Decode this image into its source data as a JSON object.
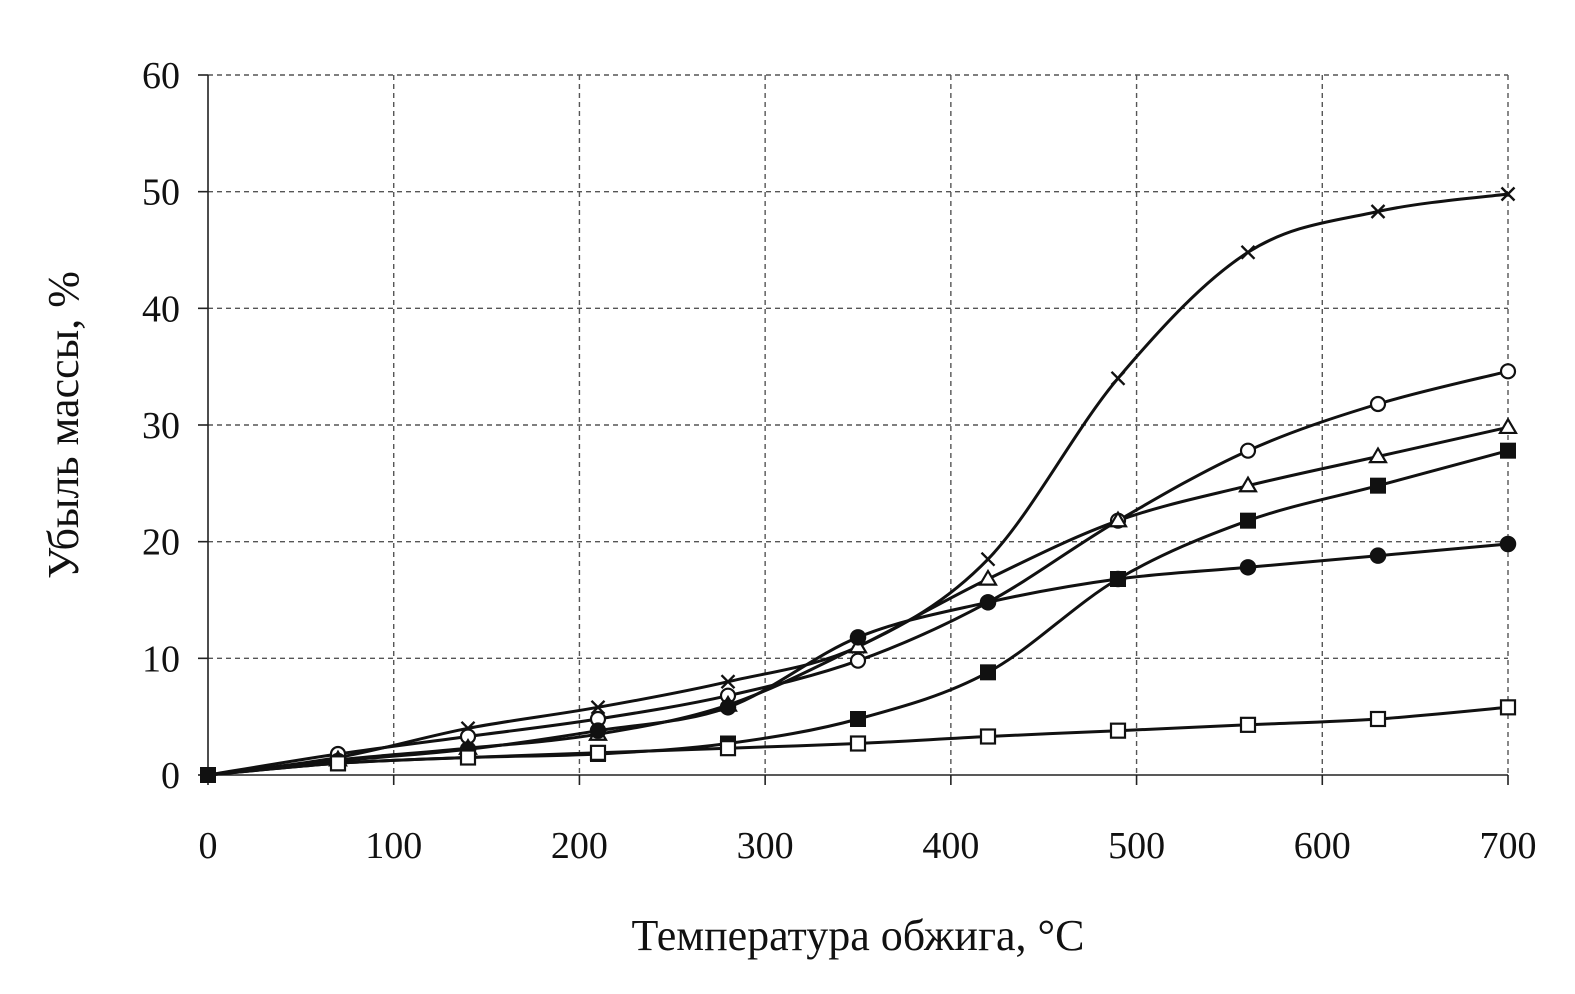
{
  "chart_data": {
    "type": "line",
    "xlabel": "Температура обжига, °C",
    "ylabel": "Убыль массы, %",
    "xlim": [
      0,
      700
    ],
    "ylim": [
      0,
      60
    ],
    "xticks": [
      0,
      100,
      200,
      300,
      400,
      500,
      600,
      700
    ],
    "yticks": [
      0,
      10,
      20,
      30,
      40,
      50,
      60
    ],
    "grid": true,
    "line_color": "#111111",
    "series": [
      {
        "marker": "cross",
        "x": [
          0,
          70,
          140,
          210,
          280,
          350,
          420,
          490,
          560,
          630,
          700
        ],
        "y": [
          0,
          1.5,
          4,
          5.8,
          8,
          11,
          18.5,
          34,
          44.8,
          48.3,
          49.8
        ]
      },
      {
        "marker": "open-circle",
        "x": [
          0,
          70,
          140,
          210,
          280,
          350,
          420,
          490,
          560,
          630,
          700
        ],
        "y": [
          0,
          1.8,
          3.3,
          4.8,
          6.8,
          9.8,
          14.8,
          21.8,
          27.8,
          31.8,
          34.6
        ]
      },
      {
        "marker": "open-triangle",
        "x": [
          0,
          70,
          140,
          210,
          280,
          350,
          420,
          490,
          560,
          630,
          700
        ],
        "y": [
          0,
          1.3,
          2.3,
          3.5,
          6,
          11,
          16.8,
          21.8,
          24.8,
          27.3,
          29.8
        ]
      },
      {
        "marker": "filled-square",
        "x": [
          0,
          70,
          140,
          210,
          280,
          350,
          420,
          490,
          560,
          630,
          700
        ],
        "y": [
          0,
          1,
          1.5,
          1.8,
          2.7,
          4.8,
          8.8,
          16.8,
          21.8,
          24.8,
          27.8
        ]
      },
      {
        "marker": "filled-circle",
        "x": [
          0,
          70,
          140,
          210,
          280,
          350,
          420,
          490,
          560,
          630,
          700
        ],
        "y": [
          0,
          1.2,
          2.2,
          3.8,
          5.8,
          11.8,
          14.8,
          16.8,
          17.8,
          18.8,
          19.8
        ]
      },
      {
        "marker": "open-square",
        "x": [
          0,
          70,
          140,
          210,
          280,
          350,
          420,
          490,
          560,
          630,
          700
        ],
        "y": [
          0,
          1,
          1.5,
          1.9,
          2.3,
          2.7,
          3.3,
          3.8,
          4.3,
          4.8,
          5.8
        ]
      }
    ]
  }
}
